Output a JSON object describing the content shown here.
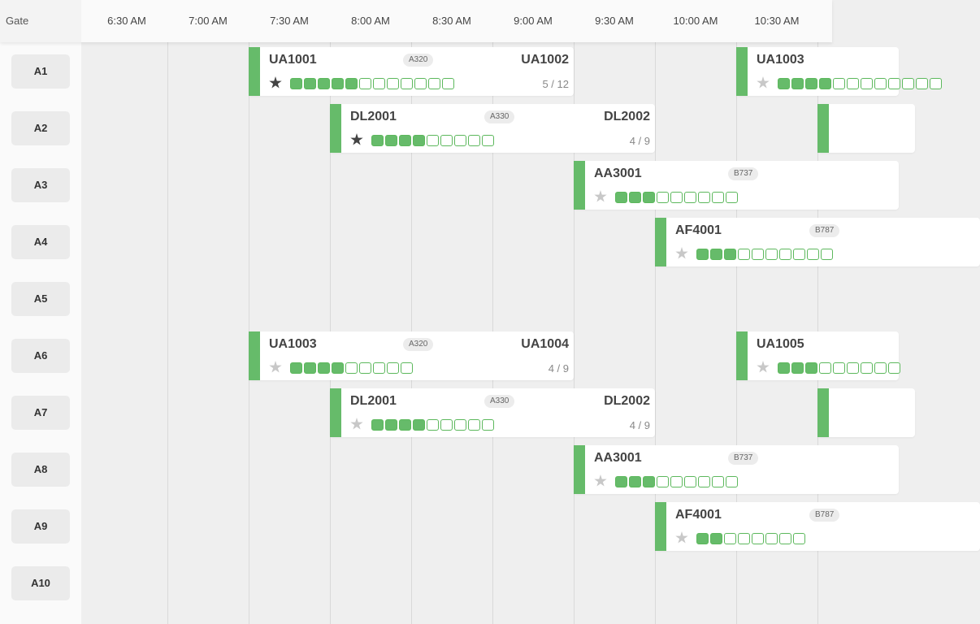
{
  "header": {
    "gate_label": "Gate",
    "times": [
      "6:30 AM",
      "7:00 AM",
      "7:30 AM",
      "8:00 AM",
      "8:30 AM",
      "9:00 AM",
      "9:30 AM",
      "10:00 AM",
      "10:30 AM"
    ]
  },
  "gates": [
    "A1",
    "A2",
    "A3",
    "A4",
    "A5",
    "A6",
    "A7",
    "A8",
    "A9",
    "A10"
  ],
  "colors": {
    "accent": "#66bb6a",
    "star_active": "#444444",
    "star_inactive": "#c8c8c8"
  },
  "flights": [
    {
      "gate_index": 0,
      "arrival": "UA1001",
      "departure": "UA1002",
      "aircraft": "A320",
      "starred": true,
      "filled": 5,
      "total": 12,
      "occupancy": "5 / 12"
    },
    {
      "gate_index": 0,
      "arrival": "UA1003",
      "departure": "",
      "aircraft": "",
      "starred": false,
      "filled": 4,
      "total": 12,
      "occupancy": ""
    },
    {
      "gate_index": 1,
      "arrival": "DL2001",
      "departure": "DL2002",
      "aircraft": "A330",
      "starred": true,
      "filled": 4,
      "total": 9,
      "occupancy": "4 / 9"
    },
    {
      "gate_index": 1,
      "arrival": "",
      "departure": "",
      "aircraft": "",
      "starred": false,
      "filled": 0,
      "total": 0,
      "occupancy": ""
    },
    {
      "gate_index": 2,
      "arrival": "AA3001",
      "departure": "",
      "aircraft": "B737",
      "starred": false,
      "filled": 3,
      "total": 9,
      "occupancy": ""
    },
    {
      "gate_index": 3,
      "arrival": "AF4001",
      "departure": "",
      "aircraft": "B787",
      "starred": false,
      "filled": 3,
      "total": 10,
      "occupancy": ""
    },
    {
      "gate_index": 5,
      "arrival": "UA1003",
      "departure": "UA1004",
      "aircraft": "A320",
      "starred": false,
      "filled": 4,
      "total": 9,
      "occupancy": "4 / 9"
    },
    {
      "gate_index": 5,
      "arrival": "UA1005",
      "departure": "",
      "aircraft": "",
      "starred": false,
      "filled": 3,
      "total": 9,
      "occupancy": ""
    },
    {
      "gate_index": 6,
      "arrival": "DL2001",
      "departure": "DL2002",
      "aircraft": "A330",
      "starred": false,
      "filled": 4,
      "total": 9,
      "occupancy": "4 / 9"
    },
    {
      "gate_index": 6,
      "arrival": "",
      "departure": "",
      "aircraft": "",
      "starred": false,
      "filled": 0,
      "total": 0,
      "occupancy": ""
    },
    {
      "gate_index": 7,
      "arrival": "AA3001",
      "departure": "",
      "aircraft": "B737",
      "starred": false,
      "filled": 3,
      "total": 9,
      "occupancy": ""
    },
    {
      "gate_index": 8,
      "arrival": "AF4001",
      "departure": "",
      "aircraft": "B787",
      "starred": false,
      "filled": 2,
      "total": 8,
      "occupancy": ""
    }
  ]
}
